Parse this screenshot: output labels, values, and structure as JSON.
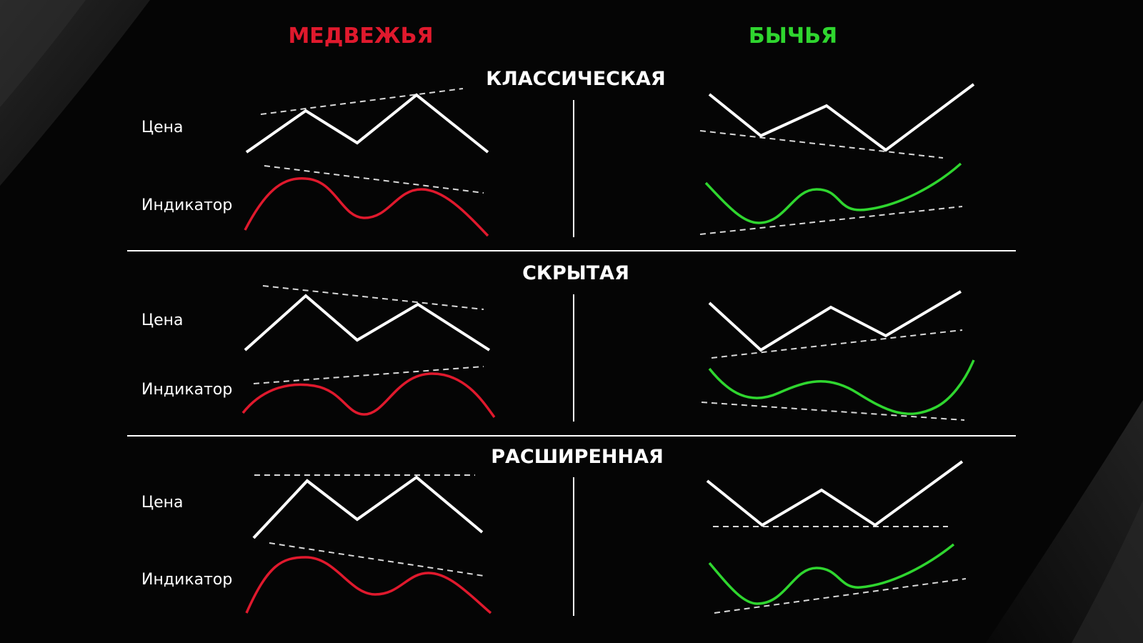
{
  "header": {
    "bearish_label": "МЕДВЕЖЬЯ",
    "bullish_label": "БЫЧЬЯ"
  },
  "colors": {
    "bearish": "#e0192d",
    "bullish": "#2fd62f",
    "price_line": "#ffffff",
    "trend_line": "#d9d9d9",
    "background": "#050505"
  },
  "sections": [
    {
      "title": "КЛАССИЧЕСКАЯ",
      "price_label": "Цена",
      "indicator_label": "Индикатор"
    },
    {
      "title": "СКРЫТАЯ",
      "price_label": "Цена",
      "indicator_label": "Индикатор"
    },
    {
      "title": "РАСШИРЕННАЯ",
      "price_label": "Цена",
      "indicator_label": "Индикатор"
    }
  ]
}
